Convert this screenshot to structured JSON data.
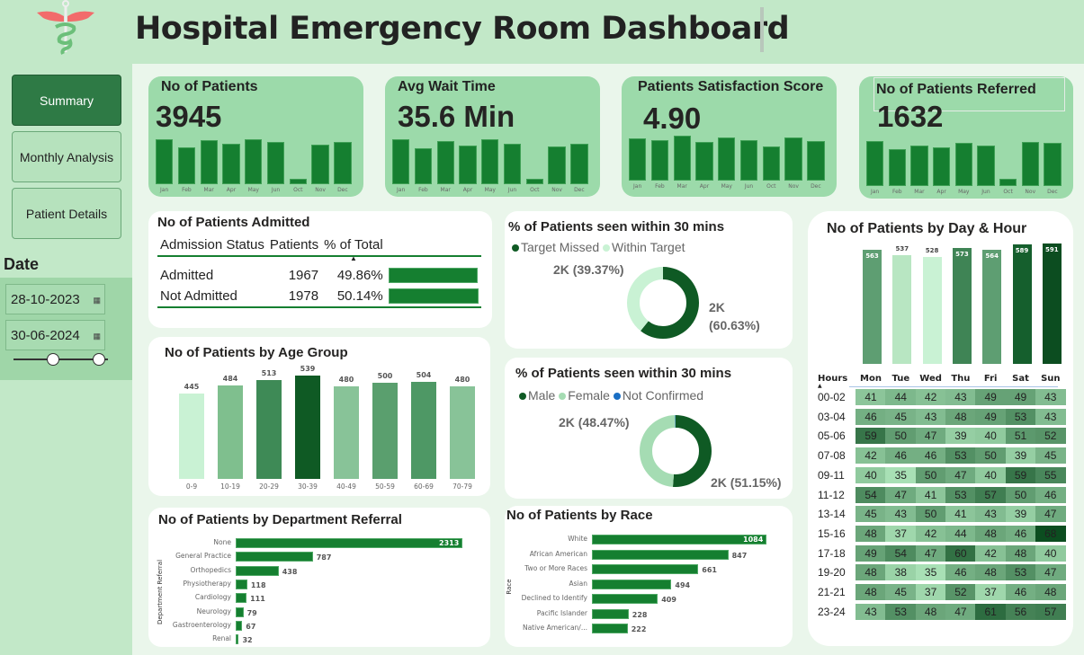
{
  "header": {
    "title": "Hospital Emergency Room Dashboard"
  },
  "nav": [
    {
      "label": "Summary",
      "active": true
    },
    {
      "label": "Monthly Analysis"
    },
    {
      "label": "Patient Details"
    }
  ],
  "date_filter": {
    "label": "Date",
    "start": "28-10-2023",
    "end": "30-06-2024",
    "calendar_icon": "calendar-icon",
    "slider_range": [
      0,
      1
    ]
  },
  "colors": {
    "kpi_bar": "#157f30",
    "card_bg": "#9cdaaa",
    "sidebar": "#c2e8c8",
    "accent_dark": "#0c4d20",
    "logo_wings": "#f26b6b"
  },
  "months": [
    "Jan",
    "Feb",
    "Mar",
    "Apr",
    "May",
    "Jun",
    "Oct",
    "Nov",
    "Dec"
  ],
  "kpis": [
    {
      "title": "No of Patients",
      "value": "3945",
      "monthly_relative": [
        100,
        83,
        98,
        91,
        100,
        94,
        13,
        89,
        95
      ]
    },
    {
      "title": "Avg Wait Time",
      "value": "35.6 Min",
      "monthly_relative": [
        100,
        81,
        97,
        86,
        100,
        91,
        13,
        85,
        90
      ]
    },
    {
      "title": "Patients Satisfaction Score",
      "value": "4.90",
      "monthly_relative": [
        94,
        90,
        100,
        87,
        97,
        90,
        77,
        96,
        89
      ]
    },
    {
      "title": "No of Patients Referred",
      "value": "1632",
      "monthly_relative": [
        100,
        83,
        91,
        86,
        96,
        90,
        17,
        98,
        97
      ]
    }
  ],
  "admitted": {
    "title": "No of Patients Admitted",
    "columns": [
      "Admission Status",
      "Patients",
      "% of Total"
    ],
    "rows": [
      {
        "status": "Admitted",
        "patients": "1967",
        "pct": "49.86%",
        "share": 49.86
      },
      {
        "status": "Not Admitted",
        "patients": "1978",
        "pct": "50.14%",
        "share": 50.14
      }
    ]
  },
  "age_group": {
    "title": "No of Patients by Age Group",
    "categories": [
      "0-9",
      "10-19",
      "20-29",
      "30-39",
      "40-49",
      "50-59",
      "60-69",
      "70-79"
    ],
    "values": [
      445,
      484,
      513,
      539,
      480,
      500,
      504,
      480
    ],
    "colors": [
      "#c9f2d4",
      "#7fbf8e",
      "#3e8a56",
      "#0f5a24",
      "#88c398",
      "#5a9f6e",
      "#4e9865",
      "#88c398"
    ]
  },
  "department": {
    "title": "No of Patients by Department Referral",
    "axis_label": "Department Referral",
    "categories": [
      "None",
      "General Practice",
      "Orthopedics",
      "Physiotherapy",
      "Cardiology",
      "Neurology",
      "Gastroenterology",
      "Renal"
    ],
    "values": [
      2313,
      787,
      438,
      118,
      111,
      79,
      67,
      32
    ]
  },
  "donut_target": {
    "title": "% of Patients seen within 30 mins",
    "legend": [
      "Target Missed",
      "Within Target"
    ],
    "colors": [
      "#0f5a24",
      "#c9f2d4"
    ],
    "shares": [
      60.63,
      39.37
    ],
    "labels": [
      "2K",
      "(60.63%)",
      "2K (39.37%)"
    ]
  },
  "donut_gender": {
    "title": "% of Patients seen within 30 mins",
    "legend": [
      "Male",
      "Female",
      "Not Confirmed"
    ],
    "colors": [
      "#0f5a24",
      "#a5dcb3",
      "#1a6fc4"
    ],
    "shares": [
      51.15,
      48.47,
      0.38
    ],
    "labels": [
      "2K (51.15%)",
      "2K (48.47%)"
    ]
  },
  "race": {
    "title": "No of Patients by Race",
    "axis_label": "Race",
    "categories": [
      "White",
      "African American",
      "Two or More Races",
      "Asian",
      "Declined to Identify",
      "Pacific Islander",
      "Native American/..."
    ],
    "values": [
      1084,
      847,
      661,
      494,
      409,
      228,
      222
    ]
  },
  "day_hour": {
    "title": "No of Patients by Day & Hour",
    "days": [
      "Mon",
      "Tue",
      "Wed",
      "Thu",
      "Fri",
      "Sat",
      "Sun"
    ],
    "day_totals": [
      563,
      537,
      528,
      573,
      564,
      589,
      591
    ],
    "day_colors": [
      "#5e9e72",
      "#b8e6c2",
      "#c9f2d4",
      "#3f8455",
      "#5e9e72",
      "#155f2d",
      "#0c4d20"
    ],
    "hours_label": "Hours",
    "sort_icon": "sort-ascending-icon",
    "hours": [
      "00-02",
      "03-04",
      "05-06",
      "07-08",
      "09-11",
      "11-12",
      "13-14",
      "15-16",
      "17-18",
      "19-20",
      "21-21",
      "23-24"
    ],
    "matrix": [
      [
        41,
        44,
        42,
        43,
        49,
        49,
        43
      ],
      [
        46,
        45,
        43,
        48,
        49,
        53,
        43
      ],
      [
        59,
        50,
        47,
        39,
        40,
        51,
        52
      ],
      [
        42,
        46,
        46,
        53,
        50,
        39,
        45
      ],
      [
        40,
        35,
        50,
        47,
        40,
        59,
        55
      ],
      [
        54,
        47,
        41,
        53,
        57,
        50,
        46
      ],
      [
        45,
        43,
        50,
        41,
        43,
        39,
        47
      ],
      [
        48,
        37,
        42,
        44,
        48,
        46,
        68
      ],
      [
        49,
        54,
        47,
        60,
        42,
        48,
        40
      ],
      [
        48,
        38,
        35,
        46,
        48,
        53,
        47
      ],
      [
        48,
        45,
        37,
        52,
        37,
        46,
        48
      ],
      [
        43,
        53,
        48,
        47,
        61,
        56,
        57
      ]
    ]
  }
}
